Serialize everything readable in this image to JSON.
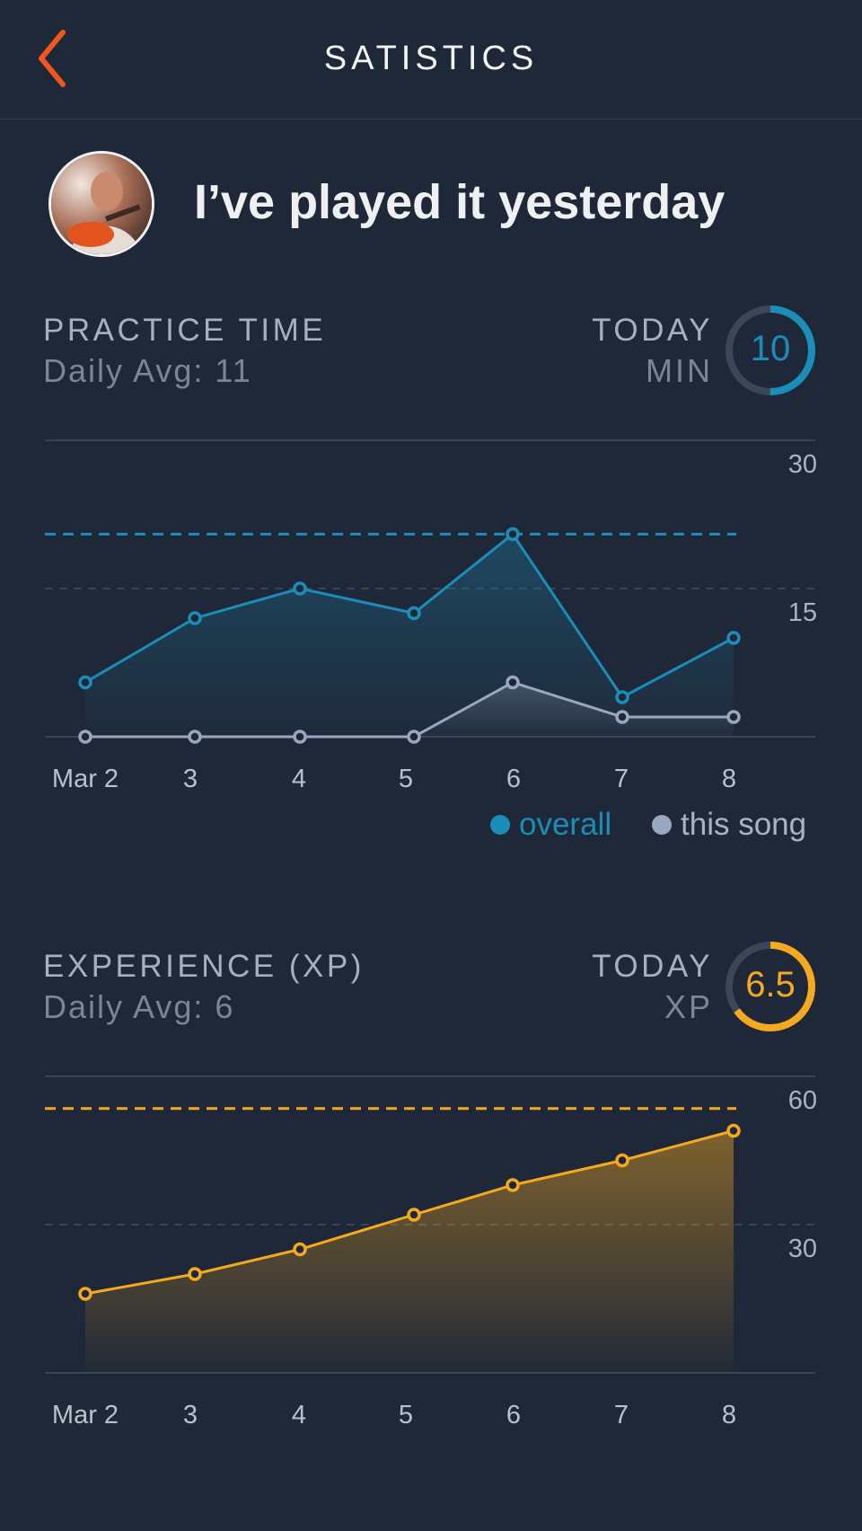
{
  "header": {
    "title": "SATISTICS"
  },
  "song": {
    "title": "I’ve played it yesterday"
  },
  "colors": {
    "accent_orange": "#f1571c",
    "overall": "#1b8db9",
    "this_song": "#9aa7c0",
    "xp": "#f5a91f",
    "background": "#1f2838"
  },
  "practice": {
    "title": "PRACTICE TIME",
    "daily_avg": "Daily Avg: 11",
    "today_label": "TODAY",
    "unit": "MIN",
    "today_value": "10",
    "legend": {
      "overall": "overall",
      "this_song": "this song"
    }
  },
  "experience": {
    "title": "EXPERIENCE (XP)",
    "daily_avg": "Daily Avg: 6",
    "today_label": "TODAY",
    "unit": "XP",
    "today_value": "6.5"
  },
  "chart_data": [
    {
      "type": "line",
      "title": "PRACTICE TIME",
      "categories": [
        "Mar 2",
        "3",
        "4",
        "5",
        "6",
        "7",
        "8"
      ],
      "y_ticks": [
        "30",
        "15"
      ],
      "ylim": [
        0,
        30
      ],
      "grid": true,
      "legend_position": "bottom-right",
      "reference_line": 20.5,
      "today_fraction": 0.5,
      "series": [
        {
          "name": "overall",
          "values": [
            5.5,
            12,
            15,
            12.5,
            20.5,
            4,
            10
          ]
        },
        {
          "name": "this song",
          "values": [
            0,
            0,
            0,
            0,
            5.5,
            2,
            2
          ]
        }
      ]
    },
    {
      "type": "area",
      "title": "EXPERIENCE (XP)",
      "categories": [
        "Mar 2",
        "3",
        "4",
        "5",
        "6",
        "7",
        "8"
      ],
      "y_ticks": [
        "60",
        "30"
      ],
      "ylim": [
        0,
        60
      ],
      "grid": true,
      "reference_line": 53.5,
      "today_fraction": 0.65,
      "series": [
        {
          "name": "",
          "values": [
            16,
            20,
            25,
            32,
            38,
            43,
            49
          ]
        }
      ]
    }
  ]
}
